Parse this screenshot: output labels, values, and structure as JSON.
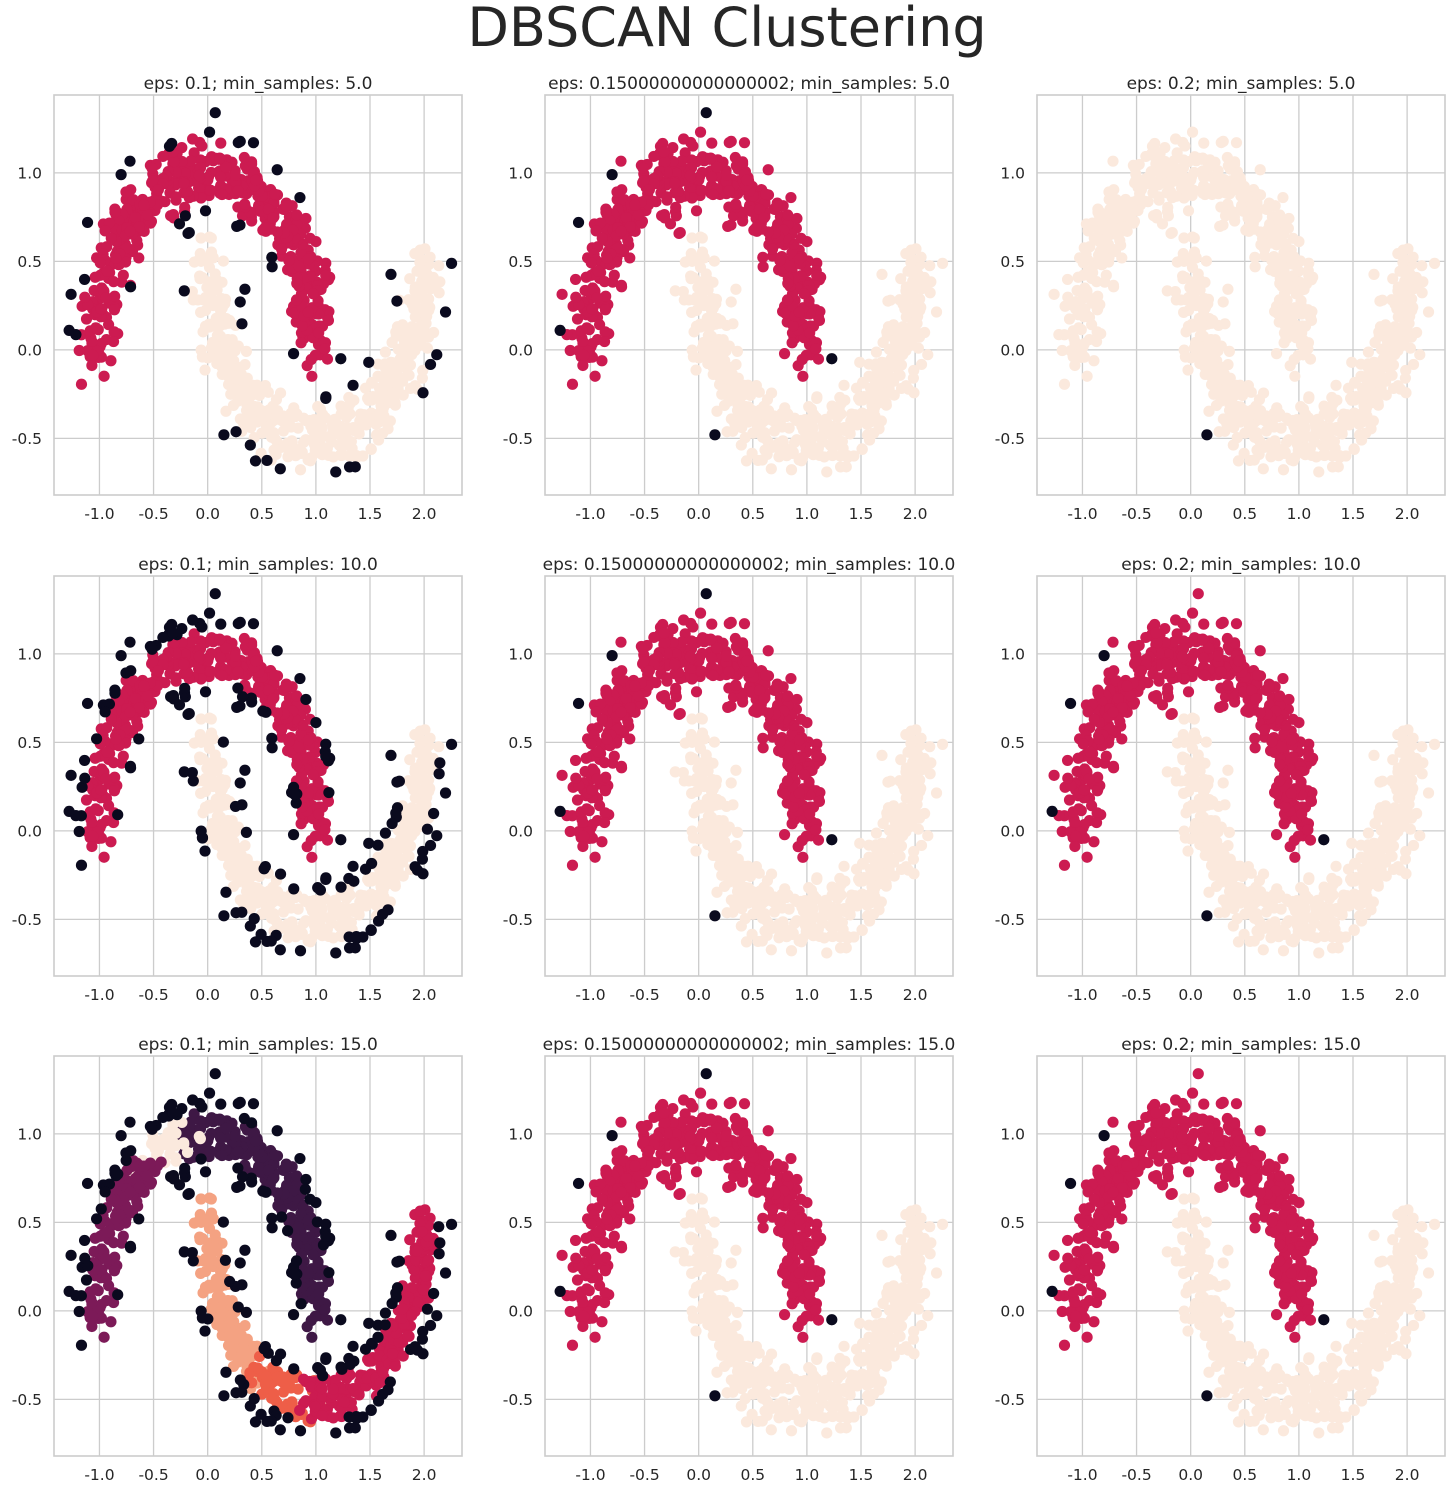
{
  "figure": {
    "title": "DBSCAN Clustering"
  },
  "colors": {
    "noise": "#0a0a1e",
    "cluster_a": "#cc1b51",
    "cluster_b": "#fbe9dd",
    "cluster_c": "#3e1845",
    "cluster_d": "#7c1a58",
    "cluster_e": "#f4a282",
    "cluster_f": "#ee5e48",
    "grid": "#cccccc",
    "spine": "#cccccc"
  },
  "chart_data": [
    {
      "type": "scatter",
      "title": "eps: 0.1; min_samples: 5.0",
      "variant": "A",
      "xlim": [
        -1.42,
        2.35
      ],
      "ylim": [
        -0.82,
        1.44
      ],
      "xticks": [
        "-1.0",
        "-0.5",
        "0.0",
        "0.5",
        "1.0",
        "1.5",
        "2.0"
      ],
      "yticks": [
        "-0.5",
        "0.0",
        "0.5",
        "1.0"
      ]
    },
    {
      "type": "scatter",
      "title": "eps: 0.15000000000000002; min_samples: 5.0",
      "variant": "B",
      "xlim": [
        -1.42,
        2.35
      ],
      "ylim": [
        -0.82,
        1.44
      ],
      "xticks": [
        "-1.0",
        "-0.5",
        "0.0",
        "0.5",
        "1.0",
        "1.5",
        "2.0"
      ],
      "yticks": [
        "-0.5",
        "0.0",
        "0.5",
        "1.0"
      ]
    },
    {
      "type": "scatter",
      "title": "eps: 0.2; min_samples: 5.0",
      "variant": "C",
      "xlim": [
        -1.42,
        2.35
      ],
      "ylim": [
        -0.82,
        1.44
      ],
      "xticks": [
        "-1.0",
        "-0.5",
        "0.0",
        "0.5",
        "1.0",
        "1.5",
        "2.0"
      ],
      "yticks": [
        "-0.5",
        "0.0",
        "0.5",
        "1.0"
      ]
    },
    {
      "type": "scatter",
      "title": "eps: 0.1; min_samples: 10.0",
      "variant": "D",
      "xlim": [
        -1.42,
        2.35
      ],
      "ylim": [
        -0.82,
        1.44
      ],
      "xticks": [
        "-1.0",
        "-0.5",
        "0.0",
        "0.5",
        "1.0",
        "1.5",
        "2.0"
      ],
      "yticks": [
        "-0.5",
        "0.0",
        "0.5",
        "1.0"
      ]
    },
    {
      "type": "scatter",
      "title": "eps: 0.15000000000000002; min_samples: 10.0",
      "variant": "B",
      "xlim": [
        -1.42,
        2.35
      ],
      "ylim": [
        -0.82,
        1.44
      ],
      "xticks": [
        "-1.0",
        "-0.5",
        "0.0",
        "0.5",
        "1.0",
        "1.5",
        "2.0"
      ],
      "yticks": [
        "-0.5",
        "0.0",
        "0.5",
        "1.0"
      ]
    },
    {
      "type": "scatter",
      "title": "eps: 0.2; min_samples: 10.0",
      "variant": "E",
      "xlim": [
        -1.42,
        2.35
      ],
      "ylim": [
        -0.82,
        1.44
      ],
      "xticks": [
        "-1.0",
        "-0.5",
        "0.0",
        "0.5",
        "1.0",
        "1.5",
        "2.0"
      ],
      "yticks": [
        "-0.5",
        "0.0",
        "0.5",
        "1.0"
      ]
    },
    {
      "type": "scatter",
      "title": "eps: 0.1; min_samples: 15.0",
      "variant": "F",
      "xlim": [
        -1.42,
        2.35
      ],
      "ylim": [
        -0.82,
        1.44
      ],
      "xticks": [
        "-1.0",
        "-0.5",
        "0.0",
        "0.5",
        "1.0",
        "1.5",
        "2.0"
      ],
      "yticks": [
        "-0.5",
        "0.0",
        "0.5",
        "1.0"
      ]
    },
    {
      "type": "scatter",
      "title": "eps: 0.15000000000000002; min_samples: 15.0",
      "variant": "B",
      "xlim": [
        -1.42,
        2.35
      ],
      "ylim": [
        -0.82,
        1.44
      ],
      "xticks": [
        "-1.0",
        "-0.5",
        "0.0",
        "0.5",
        "1.0",
        "1.5",
        "2.0"
      ],
      "yticks": [
        "-0.5",
        "0.0",
        "0.5",
        "1.0"
      ]
    },
    {
      "type": "scatter",
      "title": "eps: 0.2; min_samples: 15.0",
      "variant": "E",
      "xlim": [
        -1.42,
        2.35
      ],
      "ylim": [
        -0.82,
        1.44
      ],
      "xticks": [
        "-1.0",
        "-0.5",
        "0.0",
        "0.5",
        "1.0",
        "1.5",
        "2.0"
      ],
      "yticks": [
        "-0.5",
        "0.0",
        "0.5",
        "1.0"
      ]
    }
  ]
}
